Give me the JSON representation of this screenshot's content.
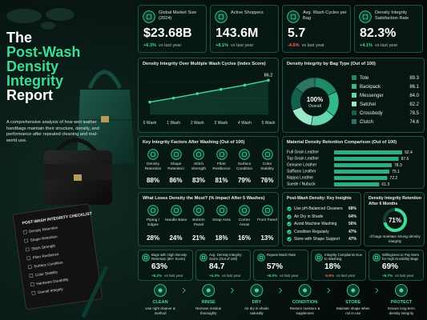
{
  "header": {
    "title_lines": [
      "The",
      "Post-Wash",
      "Density",
      "Integrity",
      "Report"
    ],
    "description": "A comprehensive analysis of how well leather handbags maintain their structure, density, and performance after repeated cleaning and real-world use."
  },
  "checklist": {
    "title": "POST-WASH INTEGRITY CHECKLIST",
    "items": [
      "Density Retention",
      "Shape Retention",
      "Stitch Strength",
      "Fiber Resilience",
      "Surface Condition",
      "Color Stability",
      "Hardware Durability",
      "Overall Integrity"
    ]
  },
  "kpis": [
    {
      "label": "Global Market Size (2024)",
      "value": "$23.68B",
      "change": "+6.3%",
      "note": "vs last year"
    },
    {
      "label": "Active Shoppers",
      "value": "143.6M",
      "change": "+8.1%",
      "note": "vs last year"
    },
    {
      "label": "Avg. Wash Cycles per Bag",
      "value": "5.7",
      "change": "-4.6%",
      "note": "vs last year"
    },
    {
      "label": "Density Integrity Satisfaction Rate",
      "value": "82.3%",
      "change": "+4.1%",
      "note": "vs last year"
    }
  ],
  "chart_data": [
    {
      "type": "line",
      "title": "Density Integrity Over Multiple Wash Cycles (Index Score)",
      "categories": [
        "0 Wash",
        "1 Wash",
        "2 Wash",
        "3 Wash",
        "4 Wash",
        "5 Wash"
      ],
      "values": [
        72.0,
        74.6,
        77.5,
        80.3,
        83.0,
        86.2
      ],
      "color": "#3ddc97",
      "ylim": [
        64,
        90
      ]
    },
    {
      "type": "pie",
      "title": "Density Integrity by Bag Type (Out of 100)",
      "center_value": "100%",
      "center_label": "Overall",
      "categories": [
        "Tote",
        "Backpack",
        "Messenger",
        "Satchel",
        "Crossbody",
        "Clutch"
      ],
      "values": [
        89.3,
        86.1,
        84.0,
        82.2,
        78.5,
        74.6
      ],
      "value_labels": [
        "89.3",
        "86.1",
        "84.0",
        "82.2",
        "78.5",
        "74.6"
      ],
      "colors": [
        "#1f8a66",
        "#35b88a",
        "#66d6ad",
        "#9be8c9",
        "#14604c",
        "#2c7560"
      ]
    },
    {
      "type": "hbar",
      "title": "Material Density Retention Comparison (Out of 100)",
      "categories": [
        "Full Grain Leather",
        "Top Grain Leather",
        "Genuine Leather",
        "Saffiano Leather",
        "Nappa Leather",
        "Suede / Nubuck"
      ],
      "values": [
        92.4,
        87.6,
        78.3,
        75.1,
        72.2,
        61.3
      ],
      "color": "#2fae82",
      "xlim": [
        0,
        100
      ]
    },
    {
      "type": "gauge",
      "title": "Density Integrity Retention After 6 Months",
      "value": 71,
      "value_label": "71%",
      "caption": "of bags maintain strong density integrity",
      "color": "#3ddc97",
      "ylim": [
        0,
        100
      ]
    }
  ],
  "factors": {
    "title": "Key Integrity Factors After Washing (Out of 100)",
    "items": [
      {
        "label": "Density Retention",
        "value": "88%"
      },
      {
        "label": "Shape Retention",
        "value": "86%"
      },
      {
        "label": "Stitch Strength",
        "value": "83%"
      },
      {
        "label": "Fiber Resilience",
        "value": "81%"
      },
      {
        "label": "Surface Condition",
        "value": "79%"
      },
      {
        "label": "Color Stability",
        "value": "76%"
      }
    ]
  },
  "losses": {
    "title": "What Loses Density the Most? (% Impact After 5 Washes)",
    "items": [
      {
        "label": "Piping / Edges",
        "value": "28%"
      },
      {
        "label": "Handle Base",
        "value": "24%"
      },
      {
        "label": "Bottom Panel",
        "value": "21%"
      },
      {
        "label": "Strap Area",
        "value": "18%"
      },
      {
        "label": "Corner Areas",
        "value": "16%"
      },
      {
        "label": "Front Panel",
        "value": "13%"
      }
    ]
  },
  "insights": {
    "title": "Post-Wash Density: Key Insights",
    "items": [
      {
        "label": "Use pH-Balanced Cleaners",
        "value": "68%"
      },
      {
        "label": "Air Dry in Shade",
        "value": "64%"
      },
      {
        "label": "Avoid Machine Washing",
        "value": "56%"
      },
      {
        "label": "Condition Regularly",
        "value": "47%"
      },
      {
        "label": "Store with Shape Support",
        "value": "47%"
      }
    ]
  },
  "bottom_kpis": [
    {
      "label": "Bags with High Density Retention (80+ Score)",
      "value": "63%",
      "change": "+5.2%",
      "note": "vs last year"
    },
    {
      "label": "Avg. Density Integrity Score (Out of 100)",
      "value": "84.7",
      "change": "+4.3%",
      "note": "vs last year"
    },
    {
      "label": "Repeat Wash Rate",
      "value": "57%",
      "change": "+6.0%",
      "note": "vs last year"
    },
    {
      "label": "Integrity Complaints Due to Washing",
      "value": "18%",
      "change": "-5.8%",
      "note": "vs last year"
    },
    {
      "label": "Willingness to Pay More for High Durability Bags",
      "value": "69%",
      "change": "+6.7%",
      "note": "vs last year"
    }
  ],
  "steps": [
    {
      "title": "CLEAN",
      "text": "Use right cleaner & method"
    },
    {
      "title": "RINSE",
      "text": "Remove residue thoroughly"
    },
    {
      "title": "DRY",
      "text": "Air dry in shade naturally"
    },
    {
      "title": "CONDITION",
      "text": "Restore moisture & suppleness"
    },
    {
      "title": "STORE",
      "text": "Maintain shape when not in use"
    },
    {
      "title": "PROTECT",
      "text": "Ensure long-term density integrity"
    }
  ]
}
